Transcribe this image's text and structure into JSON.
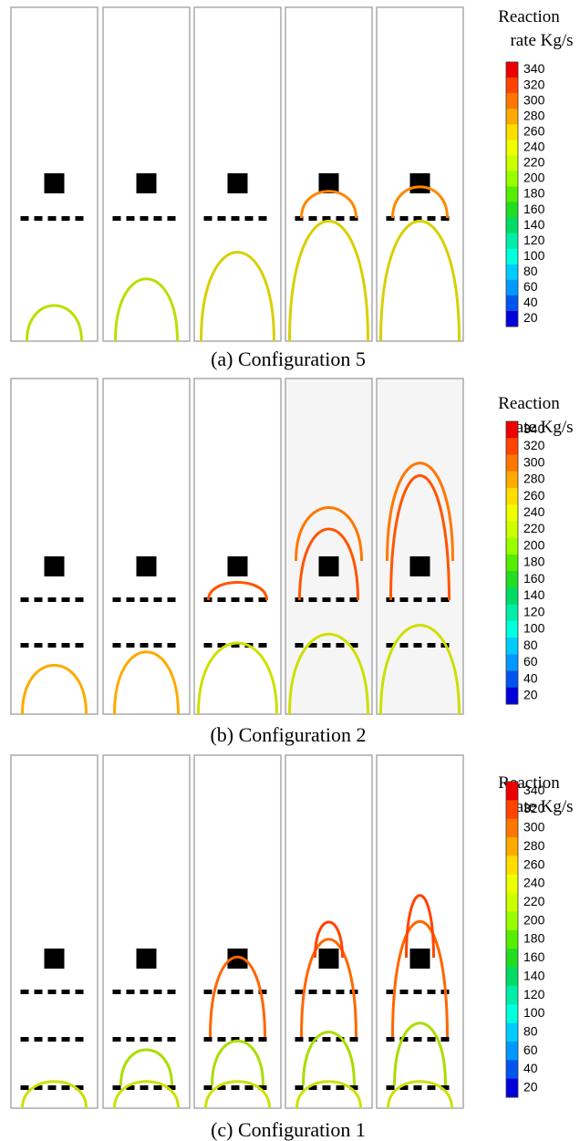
{
  "figures": [
    {
      "caption": "(a)  Configuration 5",
      "colorbar": {
        "title": [
          "Reaction",
          "rate Kg/s"
        ],
        "ticks": [
          340,
          320,
          300,
          280,
          260,
          240,
          220,
          200,
          180,
          160,
          140,
          120,
          100,
          80,
          60,
          40,
          20
        ]
      }
    },
    {
      "caption": "(b)  Configuration 2",
      "colorbar": {
        "title": [
          "Reaction",
          "rate Kg/s"
        ],
        "ticks": [
          340,
          320,
          300,
          280,
          260,
          240,
          220,
          200,
          180,
          160,
          140,
          120,
          100,
          80,
          60,
          40,
          20
        ]
      }
    },
    {
      "caption": "(c)  Configuration 1",
      "colorbar": {
        "title": [
          "Reaction",
          "rate Kg/s"
        ],
        "ticks": [
          340,
          320,
          300,
          280,
          260,
          240,
          220,
          200,
          180,
          160,
          140,
          120,
          100,
          80,
          60,
          40,
          20
        ]
      }
    }
  ]
}
